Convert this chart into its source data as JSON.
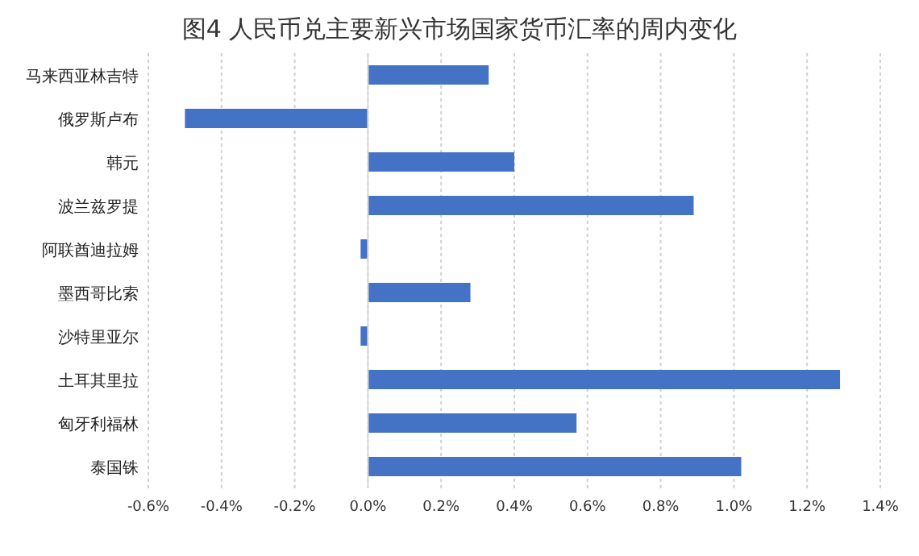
{
  "chart_data": {
    "type": "bar",
    "orientation": "horizontal",
    "title": "图4 人民币兑主要新兴市场国家货币汇率的周内变化",
    "categories": [
      "马来西亚林吉特",
      "俄罗斯卢布",
      "韩元",
      "波兰兹罗提",
      "阿联酋迪拉姆",
      "墨西哥比索",
      "沙特里亚尔",
      "土耳其里拉",
      "匈牙利福林",
      "泰国铢"
    ],
    "values": [
      0.33,
      -0.5,
      0.4,
      0.89,
      -0.02,
      0.28,
      -0.02,
      1.29,
      0.57,
      1.02
    ],
    "color": "#4472c4",
    "xlim": [
      -0.6,
      1.4
    ],
    "xticks": [
      {
        "value": -0.6,
        "label": "-0.6%"
      },
      {
        "value": -0.4,
        "label": "-0.4%"
      },
      {
        "value": -0.2,
        "label": "-0.2%"
      },
      {
        "value": 0,
        "label": "0.0%"
      },
      {
        "value": 0.2,
        "label": "0.2%"
      },
      {
        "value": 0.4,
        "label": "0.4%"
      },
      {
        "value": 0.6,
        "label": "0.6%"
      },
      {
        "value": 0.8,
        "label": "0.8%"
      },
      {
        "value": 1.0,
        "label": "1.0%"
      },
      {
        "value": 1.2,
        "label": "1.2%"
      },
      {
        "value": 1.4,
        "label": "1.4%"
      }
    ],
    "grid": "x"
  }
}
